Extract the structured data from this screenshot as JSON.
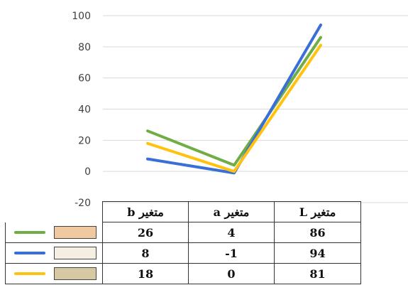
{
  "chart_data": {
    "type": "line",
    "categories": [
      "b",
      "a",
      "L"
    ],
    "column_headers": [
      "متغیر b",
      "متغیر a",
      "متغیر L"
    ],
    "series": [
      {
        "values": [
          26,
          4,
          86
        ],
        "color": "#70ad47",
        "swatch": "#f1c9a0"
      },
      {
        "values": [
          8,
          -1,
          94
        ],
        "color": "#3a6fd8",
        "swatch": "#f4efe0"
      },
      {
        "values": [
          18,
          0,
          81
        ],
        "color": "#ffc20e",
        "swatch": "#d6c8a3"
      }
    ],
    "ylim": [
      -20,
      100
    ],
    "yticks": [
      "100",
      "80",
      "60",
      "40",
      "20",
      "0",
      "-20"
    ],
    "grid": true,
    "title": "",
    "xlabel": "",
    "ylabel": ""
  },
  "table": {
    "headers": [
      "متغیر b",
      "متغیر a",
      "متغیر L"
    ],
    "rows": [
      [
        "26",
        "4",
        "86"
      ],
      [
        "8",
        "-1",
        "94"
      ],
      [
        "18",
        "0",
        "81"
      ]
    ]
  }
}
